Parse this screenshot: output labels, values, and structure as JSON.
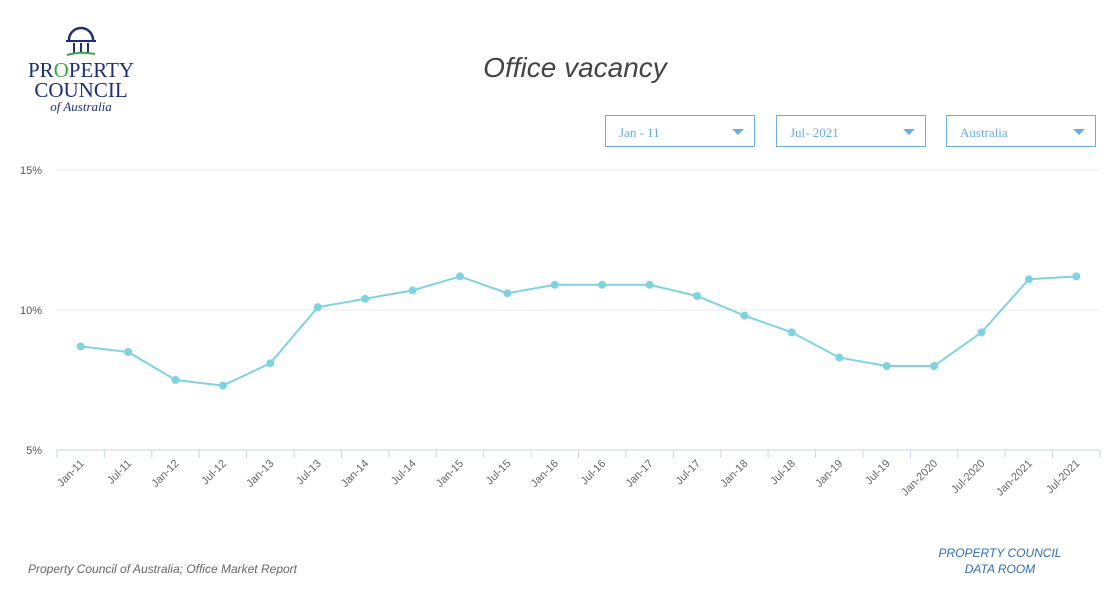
{
  "logo": {
    "line1": "PROPERTY",
    "line2": "COUNCIL",
    "line3": "of Australia"
  },
  "header": {
    "title": "Office vacancy"
  },
  "filters": {
    "start": "Jan - 11",
    "end": "Jul- 2021",
    "region": "Australia"
  },
  "footer": {
    "source": "Property Council of Australia; Office Market Report",
    "link": "PROPERTY COUNCIL DATA ROOM"
  },
  "colors": {
    "line": "#7fd3e0",
    "axis": "#c5d6ef",
    "grid": "#e8e8e8",
    "accent": "#6aaee0"
  },
  "chart_data": {
    "type": "line",
    "title": "Office vacancy",
    "xlabel": "",
    "ylabel": "",
    "ylim": [
      5,
      15
    ],
    "yticks": [
      5,
      10,
      15
    ],
    "ytick_labels": [
      "5%",
      "10%",
      "15%"
    ],
    "grid": true,
    "categories": [
      "Jan-11",
      "Jul-11",
      "Jan-12",
      "Jul-12",
      "Jan-13",
      "Jul-13",
      "Jan-14",
      "Jul-14",
      "Jan-15",
      "Jul-15",
      "Jan-16",
      "Jul-16",
      "Jan-17",
      "Jul-17",
      "Jan-18",
      "Jul-18",
      "Jan-19",
      "Jul-19",
      "Jan-2020",
      "Jul-2020",
      "Jan-2021",
      "Jul-2021"
    ],
    "series": [
      {
        "name": "Australia",
        "values": [
          8.7,
          8.5,
          7.5,
          7.3,
          8.1,
          10.1,
          10.4,
          10.7,
          11.2,
          10.6,
          10.9,
          10.9,
          10.9,
          10.5,
          9.8,
          9.2,
          8.3,
          8.0,
          8.0,
          9.2,
          11.1,
          11.2
        ]
      }
    ]
  }
}
